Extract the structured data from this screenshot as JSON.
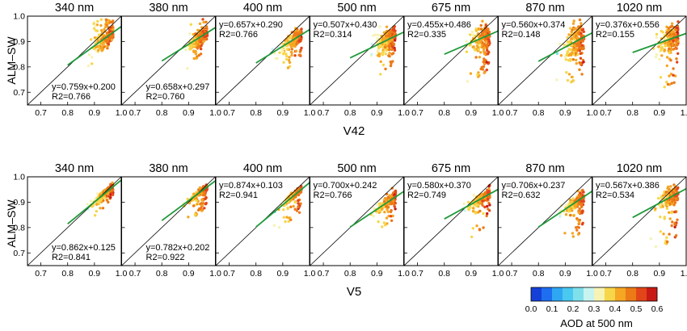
{
  "chart_data": {
    "type": "scatter",
    "wavelengths": [
      "340 nm",
      "380 nm",
      "400 nm",
      "500 nm",
      "675 nm",
      "870 nm",
      "1020 nm"
    ],
    "ylabel": "ALM–SW",
    "axis_range": [
      0.65,
      1.0
    ],
    "x_ticks": [
      "0.7",
      "0.8",
      "0.9",
      "1.0"
    ],
    "y_ticks": [
      "0.7",
      "0.8",
      "0.9",
      "1.0"
    ],
    "rows": [
      {
        "xlabel": "V42",
        "panels": [
          {
            "wavelength": "340 nm",
            "slope": 0.759,
            "intercept": 0.2,
            "eq": "y=0.759x+0.200",
            "r2": "R2=0.766",
            "label_pos": "bottom"
          },
          {
            "wavelength": "380 nm",
            "slope": 0.658,
            "intercept": 0.297,
            "eq": "y=0.658x+0.297",
            "r2": "R2=0.760",
            "label_pos": "bottom"
          },
          {
            "wavelength": "400 nm",
            "slope": 0.657,
            "intercept": 0.29,
            "eq": "y=0.657x+0.290",
            "r2": "R2=0.766",
            "label_pos": "top"
          },
          {
            "wavelength": "500 nm",
            "slope": 0.507,
            "intercept": 0.43,
            "eq": "y=0.507x+0.430",
            "r2": "R2=0.314",
            "label_pos": "top"
          },
          {
            "wavelength": "675 nm",
            "slope": 0.455,
            "intercept": 0.486,
            "eq": "y=0.455x+0.486",
            "r2": "R2=0.335",
            "label_pos": "top"
          },
          {
            "wavelength": "870 nm",
            "slope": 0.56,
            "intercept": 0.374,
            "eq": "y=0.560x+0.374",
            "r2": "R2=0.148",
            "label_pos": "top"
          },
          {
            "wavelength": "1020 nm",
            "slope": 0.376,
            "intercept": 0.556,
            "eq": "y=0.376x+0.556",
            "r2": "R2=0.155",
            "label_pos": "top"
          }
        ]
      },
      {
        "xlabel": "V5",
        "panels": [
          {
            "wavelength": "340 nm",
            "slope": 0.862,
            "intercept": 0.125,
            "eq": "y=0.862x+0.125",
            "r2": "R2=0.841",
            "label_pos": "bottom"
          },
          {
            "wavelength": "380 nm",
            "slope": 0.782,
            "intercept": 0.202,
            "eq": "y=0.782x+0.202",
            "r2": "R2=0.922",
            "label_pos": "bottom"
          },
          {
            "wavelength": "400 nm",
            "slope": 0.874,
            "intercept": 0.103,
            "eq": "y=0.874x+0.103",
            "r2": "R2=0.941",
            "label_pos": "top"
          },
          {
            "wavelength": "500 nm",
            "slope": 0.7,
            "intercept": 0.242,
            "eq": "y=0.700x+0.242",
            "r2": "R2=0.766",
            "label_pos": "top"
          },
          {
            "wavelength": "675 nm",
            "slope": 0.58,
            "intercept": 0.37,
            "eq": "y=0.580x+0.370",
            "r2": "R2=0.749",
            "label_pos": "top"
          },
          {
            "wavelength": "870 nm",
            "slope": 0.706,
            "intercept": 0.237,
            "eq": "y=0.706x+0.237",
            "r2": "R2=0.632",
            "label_pos": "top"
          },
          {
            "wavelength": "1020 nm",
            "slope": 0.567,
            "intercept": 0.386,
            "eq": "y=0.567x+0.386",
            "r2": "R2=0.534",
            "label_pos": "top"
          }
        ]
      }
    ],
    "reference_line": "1:1",
    "fit_line_color": "#1f9a3a",
    "point_color_variable": "AOD at 500 nm",
    "colorbar": {
      "title": "AOD at 500 nm",
      "ticks": [
        "0.0",
        "0.1",
        "0.2",
        "0.3",
        "0.4",
        "0.5",
        "0.6"
      ],
      "range": [
        0.0,
        0.6
      ],
      "colors": [
        "#1540d8",
        "#1e6ef0",
        "#2fa6f2",
        "#49c8f0",
        "#7fe0ec",
        "#c8f4f0",
        "#f6f3b5",
        "#f7d64a",
        "#f5a623",
        "#ec7a17",
        "#e2451a",
        "#c81a14"
      ]
    }
  }
}
